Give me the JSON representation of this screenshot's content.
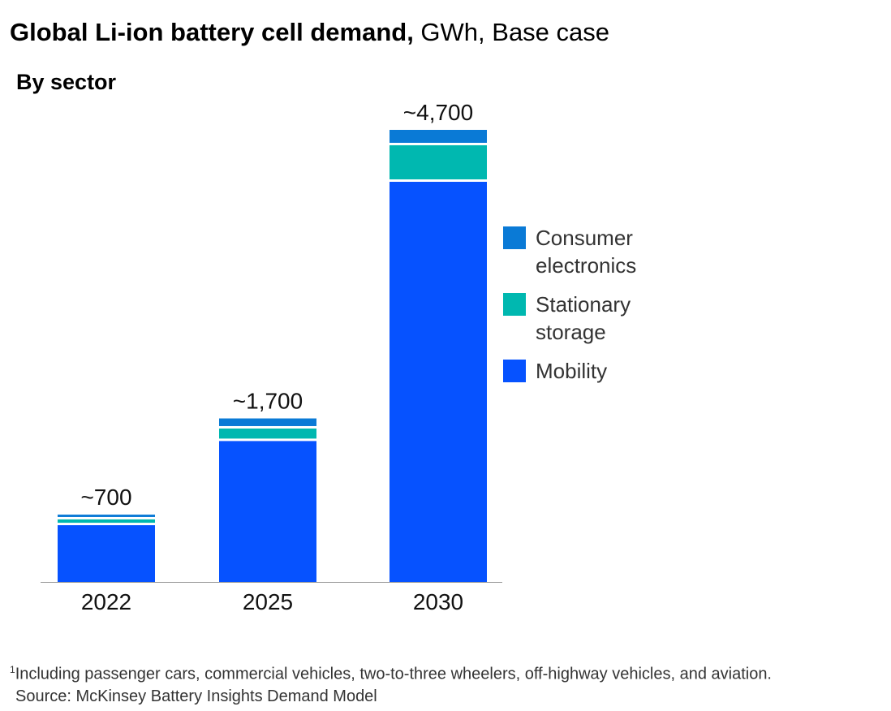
{
  "header": {
    "title_bold": "Global Li-ion battery cell demand,",
    "title_rest": " GWh, Base case",
    "subtitle": "By sector"
  },
  "chart_data": {
    "type": "bar",
    "stacked": true,
    "categories": [
      "2022",
      "2025",
      "2030"
    ],
    "totals_labels": [
      "~700",
      "~1,700",
      "~4,700"
    ],
    "totals": [
      700,
      1700,
      4700
    ],
    "series": [
      {
        "name": "Mobility",
        "values": [
          590,
          1465,
          4160
        ],
        "color": "#0652ff"
      },
      {
        "name": "Stationary storage",
        "values": [
          60,
          130,
          380
        ],
        "color": "#00b8b0"
      },
      {
        "name": "Consumer electronics",
        "values": [
          50,
          105,
          160
        ],
        "color": "#0a7ad6"
      }
    ],
    "legend_order": [
      "Consumer electronics",
      "Stationary storage",
      "Mobility"
    ],
    "ylim": [
      0,
      4700
    ],
    "grid": false,
    "legend_position": "right"
  },
  "legend": {
    "items": [
      {
        "lines": [
          "Consumer",
          "electronics"
        ],
        "color": "#0a7ad6"
      },
      {
        "lines": [
          "Stationary",
          "storage"
        ],
        "color": "#00b8b0"
      },
      {
        "lines": [
          "Mobility"
        ],
        "color": "#0652ff"
      }
    ]
  },
  "footnote": {
    "marker": "1",
    "text": "Including passenger cars, commercial vehicles, two-to-three wheelers, off-highway vehicles, and aviation.",
    "source": "Source: McKinsey Battery Insights Demand Model"
  }
}
